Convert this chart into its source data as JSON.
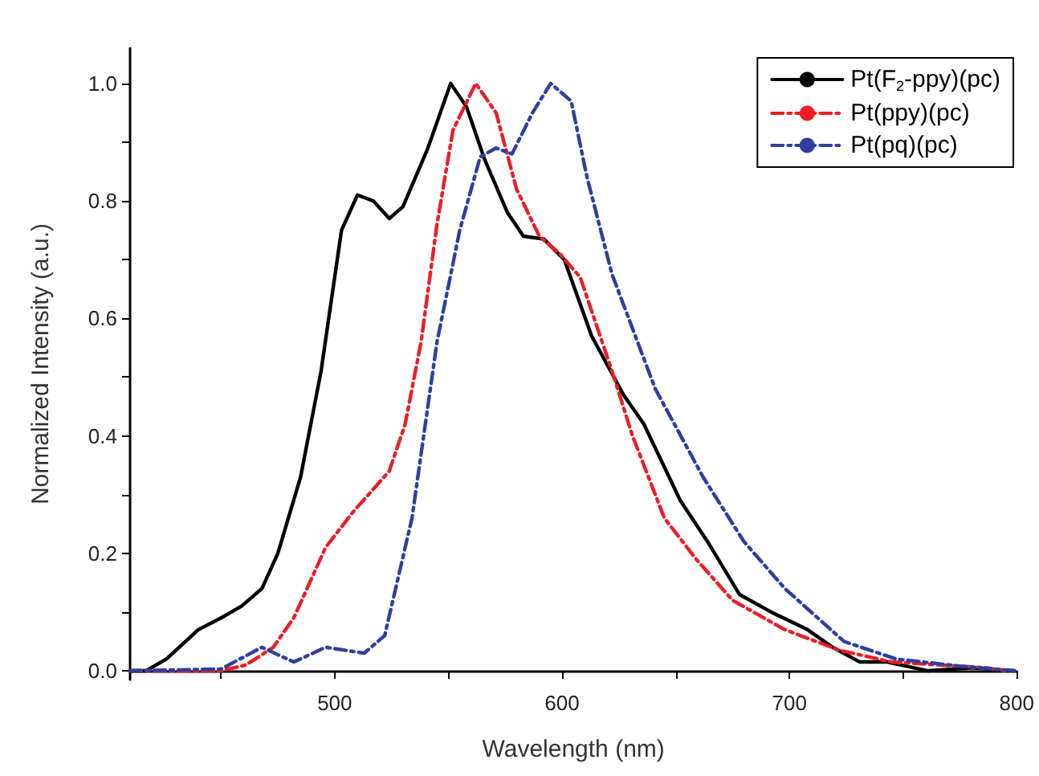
{
  "chart_data": {
    "type": "line",
    "xlabel": "Wavelength (nm)",
    "ylabel": "Normalized Intensity (a.u.)",
    "xlim": [
      410,
      800
    ],
    "ylim": [
      -0.015,
      1.06
    ],
    "xticks": [
      {
        "value": 450,
        "label": null
      },
      500,
      {
        "value": 550,
        "label": null
      },
      600,
      {
        "value": 650,
        "label": null
      },
      700,
      {
        "value": 750,
        "label": null
      },
      800
    ],
    "yticks": [
      {
        "value": 0,
        "label": "0.0"
      },
      {
        "value": 0.1,
        "label": null
      },
      {
        "value": 0.2,
        "label": "0.2"
      },
      {
        "value": 0.3,
        "label": null
      },
      {
        "value": 0.4,
        "label": "0.4"
      },
      {
        "value": 0.5,
        "label": null
      },
      {
        "value": 0.6,
        "label": "0.6"
      },
      {
        "value": 0.7,
        "label": null
      },
      {
        "value": 0.8,
        "label": "0.8"
      },
      {
        "value": 0.9,
        "label": null
      },
      {
        "value": 1.0,
        "label": "1.0"
      }
    ],
    "grid": false,
    "legend": "top right",
    "marker": "none",
    "series": [
      {
        "name": "Pt(F$_{2}$-ppy)(pc)",
        "color": "#000000",
        "line_style": "solid",
        "x": [
          410,
          417,
          426,
          440,
          450,
          459,
          468,
          475,
          485,
          494,
          503,
          510,
          517,
          524,
          530,
          541,
          551,
          558,
          566,
          576,
          583,
          592,
          601,
          613,
          627,
          636,
          652,
          664,
          678,
          692,
          708,
          719,
          731,
          743,
          761,
          780,
          799
        ],
        "values": [
          0,
          0,
          0.02,
          0.07,
          0.09,
          0.11,
          0.14,
          0.2,
          0.33,
          0.51,
          0.75,
          0.81,
          0.8,
          0.77,
          0.79,
          0.89,
          1.0,
          0.96,
          0.87,
          0.78,
          0.74,
          0.735,
          0.7,
          0.57,
          0.47,
          0.42,
          0.29,
          0.22,
          0.13,
          0.1,
          0.07,
          0.04,
          0.015,
          0.015,
          0,
          0.005,
          0
        ]
      },
      {
        "name": "Pt(ppy)(pc)",
        "color": "#ee1c25",
        "line_style": "dashed",
        "x": [
          410,
          450,
          461,
          473,
          482,
          496,
          508,
          524,
          531,
          538,
          545,
          552,
          562,
          571,
          580,
          590,
          599,
          608,
          622,
          631,
          645,
          659,
          675,
          698,
          722,
          745,
          787,
          795
        ],
        "values": [
          0,
          0,
          0.01,
          0.04,
          0.09,
          0.21,
          0.27,
          0.34,
          0.42,
          0.56,
          0.76,
          0.92,
          1.0,
          0.95,
          0.82,
          0.74,
          0.71,
          0.67,
          0.51,
          0.4,
          0.26,
          0.19,
          0.12,
          0.07,
          0.035,
          0.015,
          0.005,
          0
        ]
      },
      {
        "name": "Pt(pq)(pc)",
        "color": "#2e3f9e",
        "line_style": "dashed",
        "x": [
          410,
          450,
          468,
          482,
          496,
          513,
          522,
          534,
          545,
          555,
          564,
          571,
          578,
          587,
          595,
          604,
          611,
          613,
          622,
          641,
          662,
          680,
          698,
          724,
          747,
          775,
          799
        ],
        "values": [
          0,
          0.003,
          0.04,
          0.015,
          0.04,
          0.03,
          0.06,
          0.26,
          0.56,
          0.75,
          0.875,
          0.89,
          0.88,
          0.95,
          1.0,
          0.97,
          0.84,
          0.81,
          0.675,
          0.48,
          0.33,
          0.22,
          0.14,
          0.05,
          0.02,
          0.008,
          0
        ]
      }
    ]
  }
}
